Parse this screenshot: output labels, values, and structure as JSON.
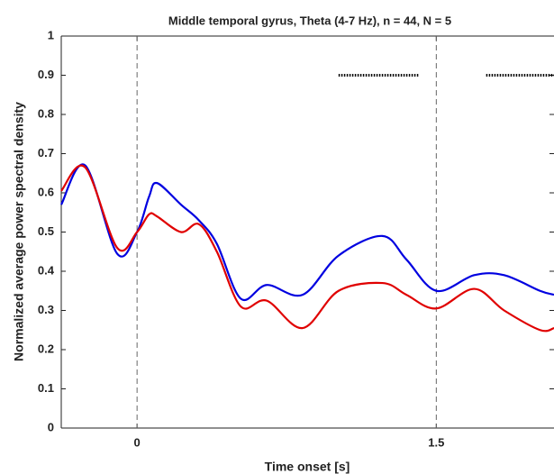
{
  "chart_data": {
    "type": "line",
    "title": "Middle temporal gyrus, Theta (4-7 Hz), n = 44, N = 5",
    "xlabel": "Time onset [s]",
    "ylabel": "Normalized average power spectral density",
    "x": [
      -0.38,
      -0.26,
      -0.1,
      0,
      0.06,
      0.1,
      0.22,
      0.31,
      0.4,
      0.52,
      0.65,
      0.83,
      1.01,
      1.23,
      1.35,
      1.5,
      1.69,
      1.84,
      2.02,
      2.09
    ],
    "series": [
      {
        "color": "#0000e0",
        "values": [
          0.57,
          0.67,
          0.445,
          0.5,
          0.59,
          0.625,
          0.57,
          0.53,
          0.47,
          0.33,
          0.365,
          0.34,
          0.44,
          0.49,
          0.43,
          0.35,
          0.39,
          0.39,
          0.35,
          0.34
        ]
      },
      {
        "color": "#e00000",
        "values": [
          0.605,
          0.665,
          0.46,
          0.5,
          0.545,
          0.54,
          0.5,
          0.52,
          0.45,
          0.31,
          0.325,
          0.255,
          0.35,
          0.37,
          0.34,
          0.305,
          0.355,
          0.3,
          0.25,
          0.255
        ]
      }
    ],
    "xlim": [
      -0.38,
      2.09
    ],
    "ylim": [
      0,
      1
    ],
    "xticks": [
      0,
      1.5
    ],
    "yticks": [
      0,
      0.1,
      0.2,
      0.3,
      0.4,
      0.5,
      0.6,
      0.7,
      0.8,
      0.9,
      1
    ],
    "vlines": [
      0,
      1.5
    ],
    "significance": {
      "y": 0.9,
      "ranges": [
        [
          1.01,
          1.41
        ],
        [
          1.75,
          2.09
        ]
      ]
    }
  }
}
